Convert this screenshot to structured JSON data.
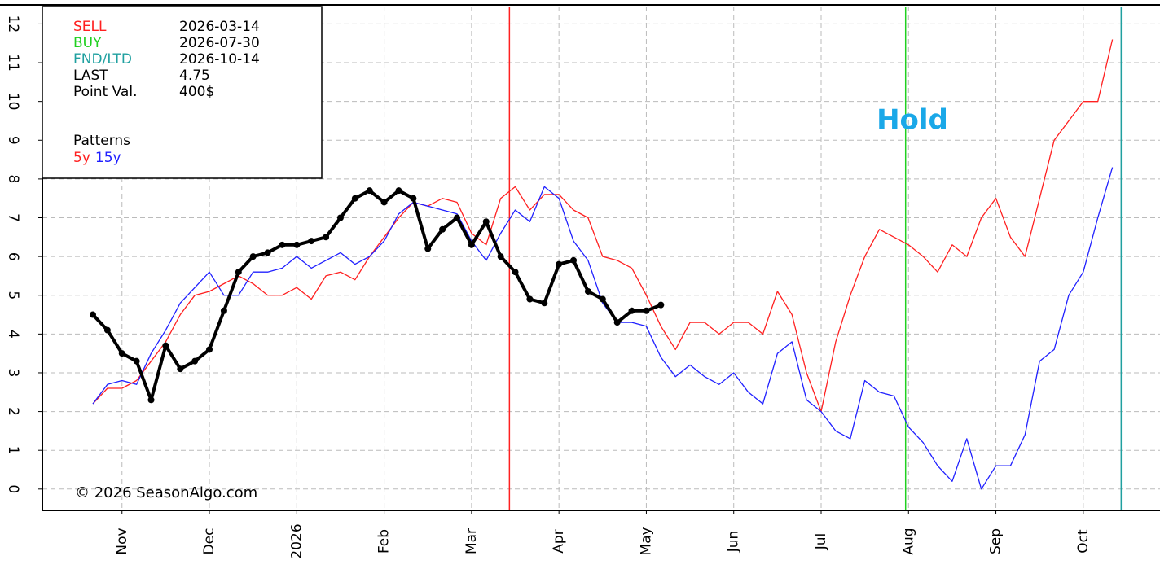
{
  "chart_data": {
    "type": "line",
    "categories": [
      null,
      null,
      "Nov",
      null,
      null,
      null,
      null,
      null,
      "Dec",
      null,
      null,
      null,
      null,
      null,
      "2026",
      null,
      null,
      null,
      null,
      null,
      "Feb",
      null,
      null,
      null,
      null,
      null,
      "Mar",
      null,
      null,
      null,
      null,
      null,
      "Apr",
      null,
      null,
      null,
      null,
      null,
      "May",
      null,
      null,
      null,
      null,
      null,
      "Jun",
      null,
      null,
      null,
      null,
      null,
      "Jul",
      null,
      null,
      null,
      null,
      null,
      "Aug",
      null,
      null,
      null,
      null,
      null,
      "Sep",
      null,
      null,
      null,
      null,
      null,
      "Oct",
      null,
      null
    ],
    "series": [
      {
        "name": "5y",
        "color": "#ff2020",
        "values": [
          2.2,
          2.6,
          2.6,
          2.8,
          3.3,
          3.8,
          4.5,
          5.0,
          5.1,
          5.3,
          5.5,
          5.3,
          5.0,
          5.0,
          5.2,
          4.9,
          5.5,
          5.6,
          5.4,
          6.0,
          6.5,
          7.0,
          7.4,
          7.3,
          7.5,
          7.4,
          6.6,
          6.3,
          7.5,
          7.8,
          7.2,
          7.6,
          7.6,
          7.2,
          7.0,
          6.0,
          5.9,
          5.7,
          5.0,
          4.2,
          3.6,
          4.3,
          4.3,
          4.0,
          4.3,
          4.3,
          4.0,
          5.1,
          4.5,
          3.0,
          2.0,
          3.8,
          5.0,
          6.0,
          6.7,
          6.5,
          6.3,
          6.0,
          5.6,
          6.3,
          6.0,
          7.0,
          7.5,
          6.5,
          6.0,
          7.5,
          9.0,
          9.5,
          10.0,
          10.0,
          11.6
        ]
      },
      {
        "name": "15y",
        "color": "#2020ff",
        "values": [
          2.2,
          2.7,
          2.8,
          2.7,
          3.5,
          4.1,
          4.8,
          5.2,
          5.6,
          5.0,
          5.0,
          5.6,
          5.6,
          5.7,
          6.0,
          5.7,
          5.9,
          6.1,
          5.8,
          6.0,
          6.4,
          7.1,
          7.4,
          7.3,
          7.2,
          7.1,
          6.4,
          5.9,
          6.6,
          7.2,
          6.9,
          7.8,
          7.5,
          6.4,
          5.9,
          4.8,
          4.3,
          4.3,
          4.2,
          3.4,
          2.9,
          3.2,
          2.9,
          2.7,
          3.0,
          2.5,
          2.2,
          3.5,
          3.8,
          2.3,
          2.0,
          1.5,
          1.3,
          2.8,
          2.5,
          2.4,
          1.6,
          1.2,
          0.6,
          0.2,
          1.3,
          0.0,
          0.6,
          0.6,
          1.4,
          3.3,
          3.6,
          5.0,
          5.6,
          7.0,
          8.3
        ]
      },
      {
        "color": "#000000",
        "marker": "circle",
        "values": [
          4.5,
          4.1,
          3.5,
          3.3,
          2.3,
          3.7,
          3.1,
          3.3,
          3.6,
          4.6,
          5.6,
          6.0,
          6.1,
          6.3,
          6.3,
          6.4,
          6.5,
          7.0,
          7.5,
          7.7,
          7.4,
          7.7,
          7.5,
          6.2,
          6.7,
          7.0,
          6.3,
          6.9,
          6.0,
          5.6,
          4.9,
          4.8,
          5.8,
          5.9,
          5.1,
          4.9,
          4.3,
          4.6,
          4.6,
          4.75,
          null,
          null,
          null,
          null,
          null,
          null,
          null,
          null,
          null,
          null,
          null,
          null,
          null,
          null,
          null,
          null,
          null,
          null,
          null,
          null,
          null,
          null,
          null,
          null,
          null,
          null,
          null,
          null,
          null,
          null,
          null
        ]
      }
    ],
    "ylim": [
      -0.55,
      12.45
    ],
    "yticks": [
      0,
      1,
      2,
      3,
      4,
      5,
      6,
      7,
      8,
      9,
      10,
      11,
      12
    ],
    "grid": true,
    "events": [
      {
        "label": "SELL",
        "date": "2026-03-14",
        "color": "#ff2020"
      },
      {
        "label": "BUY",
        "date": "2026-07-30",
        "color": "#20d020"
      },
      {
        "label": "FND/LTD",
        "date": "2026-10-14",
        "color": "#20a0a0"
      }
    ],
    "info": [
      {
        "label": "LAST",
        "value": 4.75
      },
      {
        "label": "Point Val.",
        "value": "400$"
      }
    ],
    "legend_title": "Patterns",
    "annotations": [
      {
        "text": "Hold",
        "color": "#1aa8e8"
      },
      {
        "text": "© 2026 SeasonAlgo.com",
        "color": "#000000"
      }
    ]
  }
}
